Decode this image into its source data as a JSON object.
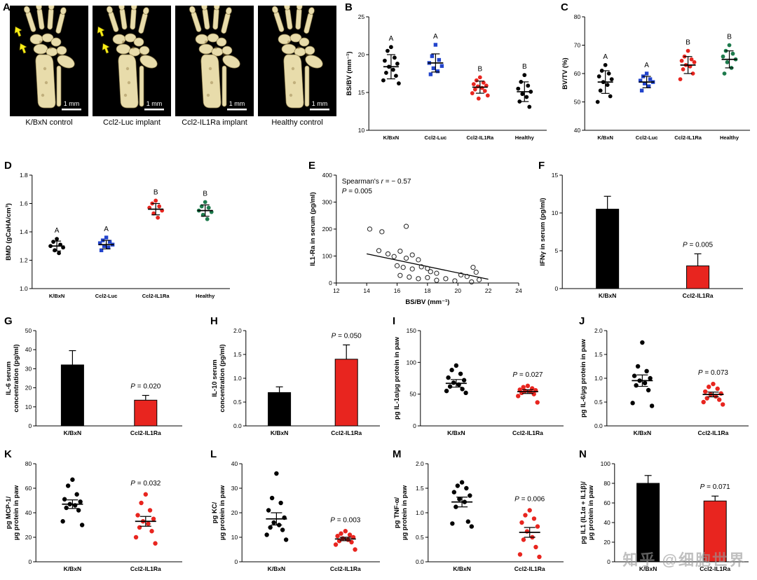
{
  "watermark": "知乎 @细胞世界",
  "panel_a": {
    "letter": "A",
    "scale_label": "1 mm",
    "images": [
      {
        "caption": "K/BxN control",
        "arrows": true
      },
      {
        "caption": "Ccl2-Luc implant",
        "arrows": true
      },
      {
        "caption": "Ccl2-IL1Ra implant",
        "arrows": false
      },
      {
        "caption": "Healthy control",
        "arrows": false
      }
    ]
  },
  "chart_data": [
    {
      "id": "B",
      "letter": "B",
      "type": "dotplot",
      "ylabel": [
        "BS/BV (mm⁻¹)"
      ],
      "ylim": [
        10,
        25
      ],
      "yticks": [
        10,
        15,
        20,
        25
      ],
      "ytick_labels": [
        "10",
        "15",
        "20",
        "25"
      ],
      "groups": [
        {
          "name": "K/BxN",
          "color": "#000000",
          "marker": "circle",
          "letter": "A",
          "mean": 18.4,
          "err": 1.6,
          "points": [
            21.0,
            20.5,
            19.6,
            19.2,
            18.8,
            18.4,
            18.0,
            17.6,
            17.2,
            16.6,
            16.2
          ]
        },
        {
          "name": "Ccl2-Luc",
          "color": "#2244cc",
          "marker": "square",
          "letter": "A",
          "mean": 18.9,
          "err": 1.2,
          "points": [
            21.3,
            19.8,
            19.3,
            18.9,
            18.5,
            18.2,
            17.8,
            17.4
          ]
        },
        {
          "name": "Ccl2-IL1Ra",
          "color": "#e8251f",
          "marker": "circle",
          "letter": "B",
          "mean": 15.7,
          "err": 0.8,
          "points": [
            17.0,
            16.6,
            16.3,
            16.1,
            15.9,
            15.8,
            15.6,
            15.4,
            15.2,
            14.9,
            14.6,
            14.2
          ]
        },
        {
          "name": "Healthy",
          "color": "#000000",
          "marker": "circle",
          "letter": "B",
          "mean": 15.1,
          "err": 1.3,
          "points": [
            17.3,
            16.4,
            15.9,
            15.5,
            15.1,
            14.8,
            14.4,
            13.8,
            13.1
          ]
        }
      ]
    },
    {
      "id": "C",
      "letter": "C",
      "type": "dotplot",
      "ylabel": [
        "BV/TV (%)"
      ],
      "ylim": [
        40,
        80
      ],
      "yticks": [
        40,
        50,
        60,
        70,
        80
      ],
      "ytick_labels": [
        "40",
        "50",
        "60",
        "70",
        "80"
      ],
      "groups": [
        {
          "name": "K/BxN",
          "color": "#000000",
          "marker": "circle",
          "letter": "A",
          "mean": 57,
          "err": 4,
          "points": [
            63,
            61,
            60,
            59,
            58,
            57,
            56,
            54,
            52,
            50
          ]
        },
        {
          "name": "Ccl2-Luc",
          "color": "#2244cc",
          "marker": "square",
          "letter": "A",
          "mean": 57,
          "err": 2,
          "points": [
            60,
            59,
            58,
            57.5,
            57,
            56.5,
            55.5,
            54
          ]
        },
        {
          "name": "Ccl2-IL1Ra",
          "color": "#e8251f",
          "marker": "circle",
          "letter": "B",
          "mean": 63,
          "err": 3,
          "points": [
            68,
            66,
            65,
            64.5,
            64,
            63,
            62.5,
            61.5,
            60,
            58
          ]
        },
        {
          "name": "Healthy",
          "color": "#1d7a4c",
          "marker": "circle",
          "letter": "B",
          "mean": 65,
          "err": 3,
          "points": [
            70,
            68,
            67,
            66,
            65,
            64,
            62,
            60
          ]
        }
      ]
    },
    {
      "id": "D",
      "letter": "D",
      "type": "dotplot",
      "ylabel": [
        "BMD (gCaHA/cm³)"
      ],
      "ylim": [
        1.0,
        1.8
      ],
      "yticks": [
        1.0,
        1.2,
        1.4,
        1.6,
        1.8
      ],
      "ytick_labels": [
        "1.0",
        "1.2",
        "1.4",
        "1.6",
        "1.8"
      ],
      "groups": [
        {
          "name": "K/BxN",
          "color": "#000000",
          "marker": "circle",
          "letter": "A",
          "mean": 1.3,
          "err": 0.035,
          "points": [
            1.35,
            1.33,
            1.31,
            1.3,
            1.29,
            1.27,
            1.25
          ]
        },
        {
          "name": "Ccl2-Luc",
          "color": "#2244cc",
          "marker": "square",
          "letter": "A",
          "mean": 1.31,
          "err": 0.03,
          "points": [
            1.36,
            1.34,
            1.33,
            1.32,
            1.31,
            1.3,
            1.29,
            1.27
          ]
        },
        {
          "name": "Ccl2-IL1Ra",
          "color": "#e8251f",
          "marker": "circle",
          "letter": "B",
          "mean": 1.56,
          "err": 0.04,
          "points": [
            1.62,
            1.6,
            1.58,
            1.57,
            1.55,
            1.53,
            1.5
          ]
        },
        {
          "name": "Healthy",
          "color": "#1d7a4c",
          "marker": "circle",
          "letter": "B",
          "mean": 1.55,
          "err": 0.04,
          "points": [
            1.61,
            1.58,
            1.57,
            1.55,
            1.54,
            1.52,
            1.49
          ]
        }
      ]
    },
    {
      "id": "E",
      "letter": "E",
      "type": "scatter",
      "ylabel": [
        "IL1-Ra in serum (pg/ml)"
      ],
      "xlabel": "BS/BV (mm⁻¹)",
      "ylim": [
        0,
        400
      ],
      "yticks": [
        0,
        100,
        200,
        300,
        400
      ],
      "ytick_labels": [
        "0",
        "100",
        "200",
        "300",
        "400"
      ],
      "xlim": [
        12,
        24
      ],
      "xticks": [
        12,
        14,
        16,
        18,
        20,
        22,
        24
      ],
      "xtick_labels": [
        "12",
        "14",
        "16",
        "18",
        "20",
        "22",
        "24"
      ],
      "annotation": [
        [
          {
            "t": "Spearman's ",
            "i": false
          },
          {
            "t": "r",
            "i": true
          },
          {
            "t": " = − 0.57",
            "i": false
          }
        ],
        [
          {
            "t": "P",
            "i": true
          },
          {
            "t": " = 0.005",
            "i": false
          }
        ]
      ],
      "trend": {
        "x1": 14,
        "y1": 108,
        "x2": 22,
        "y2": 14
      },
      "points": [
        [
          14.2,
          200
        ],
        [
          15.0,
          190
        ],
        [
          16.6,
          210
        ],
        [
          14.8,
          120
        ],
        [
          15.4,
          108
        ],
        [
          15.8,
          98
        ],
        [
          16.2,
          118
        ],
        [
          16.6,
          92
        ],
        [
          17.0,
          104
        ],
        [
          17.4,
          86
        ],
        [
          16.0,
          64
        ],
        [
          16.4,
          58
        ],
        [
          17.0,
          52
        ],
        [
          17.6,
          60
        ],
        [
          18.0,
          54
        ],
        [
          18.2,
          42
        ],
        [
          18.6,
          36
        ],
        [
          16.2,
          28
        ],
        [
          16.8,
          22
        ],
        [
          17.4,
          16
        ],
        [
          18.0,
          20
        ],
        [
          18.6,
          10
        ],
        [
          19.2,
          16
        ],
        [
          19.8,
          8
        ],
        [
          20.2,
          30
        ],
        [
          20.6,
          24
        ],
        [
          21.0,
          58
        ],
        [
          21.2,
          40
        ],
        [
          21.4,
          12
        ],
        [
          20.9,
          4
        ]
      ]
    },
    {
      "id": "F",
      "letter": "F",
      "type": "bar",
      "ylabel": [
        "IFNγ in serum (pg/ml)"
      ],
      "ylim": [
        0,
        15
      ],
      "yticks": [
        0,
        5,
        10,
        15
      ],
      "ytick_labels": [
        "0",
        "5",
        "10",
        "15"
      ],
      "p_value": "0.005",
      "groups": [
        {
          "name": "K/BxN",
          "color": "#000000",
          "value": 10.5,
          "err": 1.7
        },
        {
          "name": "Ccl2-IL1Ra",
          "color": "#e8251f",
          "value": 3.0,
          "err": 1.6
        }
      ]
    },
    {
      "id": "G",
      "letter": "G",
      "type": "bar",
      "ylabel": [
        "IL-6 serum",
        "concentration (pg/ml)"
      ],
      "ylim": [
        0,
        50
      ],
      "yticks": [
        0,
        10,
        20,
        30,
        40,
        50
      ],
      "ytick_labels": [
        "0",
        "10",
        "20",
        "30",
        "40",
        "50"
      ],
      "p_value": "0.020",
      "groups": [
        {
          "name": "K/BxN",
          "color": "#000000",
          "value": 32,
          "err": 7.5
        },
        {
          "name": "Ccl2-IL1Ra",
          "color": "#e8251f",
          "value": 13.5,
          "err": 2.5
        }
      ]
    },
    {
      "id": "H",
      "letter": "H",
      "type": "bar",
      "ylabel": [
        "IL-10 serum",
        "concentration (pg/ml)"
      ],
      "ylim": [
        0,
        2.0
      ],
      "yticks": [
        0,
        0.5,
        1.0,
        1.5,
        2.0
      ],
      "ytick_labels": [
        "0.0",
        "0.5",
        "1.0",
        "1.5",
        "2.0"
      ],
      "p_value": "0.050",
      "groups": [
        {
          "name": "K/BxN",
          "color": "#000000",
          "value": 0.7,
          "err": 0.12
        },
        {
          "name": "Ccl2-IL1Ra",
          "color": "#e8251f",
          "value": 1.4,
          "err": 0.3
        }
      ]
    },
    {
      "id": "I",
      "letter": "I",
      "type": "dotplot",
      "ylabel": [
        "pg IL-1α/µg protein in paw"
      ],
      "ylim": [
        0,
        150
      ],
      "yticks": [
        0,
        50,
        100,
        150
      ],
      "ytick_labels": [
        "0",
        "50",
        "100",
        "150"
      ],
      "p_value": "0.027",
      "groups": [
        {
          "name": "K/BxN",
          "color": "#000000",
          "marker": "circle",
          "mean": 67,
          "err": 6,
          "points": [
            95,
            88,
            82,
            76,
            72,
            68,
            65,
            62,
            58,
            55,
            52
          ]
        },
        {
          "name": "Ccl2-IL1Ra",
          "color": "#e8251f",
          "marker": "circle",
          "mean": 54,
          "err": 3,
          "points": [
            63,
            61,
            59,
            57,
            56,
            55,
            54,
            52,
            50,
            47,
            37
          ]
        }
      ]
    },
    {
      "id": "J",
      "letter": "J",
      "type": "dotplot",
      "ylabel": [
        "pg IL-6/µg protein in paw"
      ],
      "ylim": [
        0,
        2
      ],
      "yticks": [
        0,
        0.5,
        1.0,
        1.5,
        2.0
      ],
      "ytick_labels": [
        "0.0",
        "0.5",
        "1.0",
        "1.5",
        "2.0"
      ],
      "p_value": "0.073",
      "groups": [
        {
          "name": "K/BxN",
          "color": "#000000",
          "marker": "circle",
          "mean": 0.95,
          "err": 0.12,
          "points": [
            1.75,
            1.25,
            1.15,
            1.05,
            1.0,
            0.95,
            0.9,
            0.85,
            0.75,
            0.48,
            0.42
          ]
        },
        {
          "name": "Ccl2-IL1Ra",
          "color": "#e8251f",
          "marker": "circle",
          "mean": 0.66,
          "err": 0.05,
          "points": [
            0.88,
            0.82,
            0.78,
            0.72,
            0.68,
            0.66,
            0.62,
            0.58,
            0.55,
            0.5,
            0.45
          ]
        }
      ]
    },
    {
      "id": "K",
      "letter": "K",
      "type": "dotplot",
      "ylabel": [
        "pg MCP-1/",
        "µg protein in paw"
      ],
      "ylim": [
        0,
        80
      ],
      "yticks": [
        0,
        20,
        40,
        60,
        80
      ],
      "ytick_labels": [
        "0",
        "20",
        "40",
        "60",
        "80"
      ],
      "p_value": "0.032",
      "groups": [
        {
          "name": "K/BxN",
          "color": "#000000",
          "marker": "circle",
          "mean": 47,
          "err": 3.5,
          "points": [
            67,
            62,
            55,
            51,
            49,
            47,
            46,
            44,
            42,
            33,
            30
          ]
        },
        {
          "name": "Ccl2-IL1Ra",
          "color": "#e8251f",
          "marker": "circle",
          "mean": 33,
          "err": 4,
          "points": [
            55,
            48,
            42,
            38,
            35,
            33,
            31,
            28,
            25,
            20,
            15
          ]
        }
      ]
    },
    {
      "id": "L",
      "letter": "L",
      "type": "dotplot",
      "ylabel": [
        "pg KC/",
        "µg protein in paw"
      ],
      "ylim": [
        0,
        40
      ],
      "yticks": [
        0,
        10,
        20,
        30,
        40
      ],
      "ytick_labels": [
        "0",
        "10",
        "20",
        "30",
        "40"
      ],
      "p_value": "0.003",
      "groups": [
        {
          "name": "K/BxN",
          "color": "#000000",
          "marker": "circle",
          "mean": 17.5,
          "err": 2.5,
          "points": [
            36,
            26,
            24,
            21,
            18,
            16,
            15,
            14,
            13,
            11,
            9
          ]
        },
        {
          "name": "Ccl2-IL1Ra",
          "color": "#e8251f",
          "marker": "circle",
          "mean": 9.3,
          "err": 0.7,
          "points": [
            12.5,
            11.5,
            11,
            10.5,
            10,
            9.5,
            9,
            8.5,
            8,
            7,
            5
          ]
        }
      ]
    },
    {
      "id": "M",
      "letter": "M",
      "type": "dotplot",
      "ylabel": [
        "pg TNF-α/",
        "µg protein in paw"
      ],
      "ylim": [
        0,
        2.0
      ],
      "yticks": [
        0,
        0.5,
        1.0,
        1.5,
        2.0
      ],
      "ytick_labels": [
        "0.0",
        "0.5",
        "1.0",
        "1.5",
        "2.0"
      ],
      "p_value": "0.006",
      "groups": [
        {
          "name": "K/BxN",
          "color": "#000000",
          "marker": "circle",
          "mean": 1.22,
          "err": 0.1,
          "points": [
            1.62,
            1.55,
            1.5,
            1.42,
            1.35,
            1.28,
            1.22,
            1.12,
            0.82,
            0.78,
            0.72
          ]
        },
        {
          "name": "Ccl2-IL1Ra",
          "color": "#e8251f",
          "marker": "circle",
          "mean": 0.6,
          "err": 0.1,
          "points": [
            1.05,
            0.95,
            0.88,
            0.8,
            0.72,
            0.62,
            0.5,
            0.45,
            0.3,
            0.15,
            0.1
          ]
        }
      ]
    },
    {
      "id": "N",
      "letter": "N",
      "type": "bar",
      "ylabel": [
        "pg IL1 (IL1α + IL1β)/",
        "µg protein in paw"
      ],
      "ylim": [
        0,
        100
      ],
      "yticks": [
        0,
        20,
        40,
        60,
        80,
        100
      ],
      "ytick_labels": [
        "0",
        "20",
        "40",
        "60",
        "80",
        "100"
      ],
      "p_value": "0.071",
      "groups": [
        {
          "name": "K/BxN",
          "color": "#000000",
          "value": 80,
          "err": 8
        },
        {
          "name": "Ccl2-IL1Ra",
          "color": "#e8251f",
          "value": 62,
          "err": 5
        }
      ]
    }
  ]
}
